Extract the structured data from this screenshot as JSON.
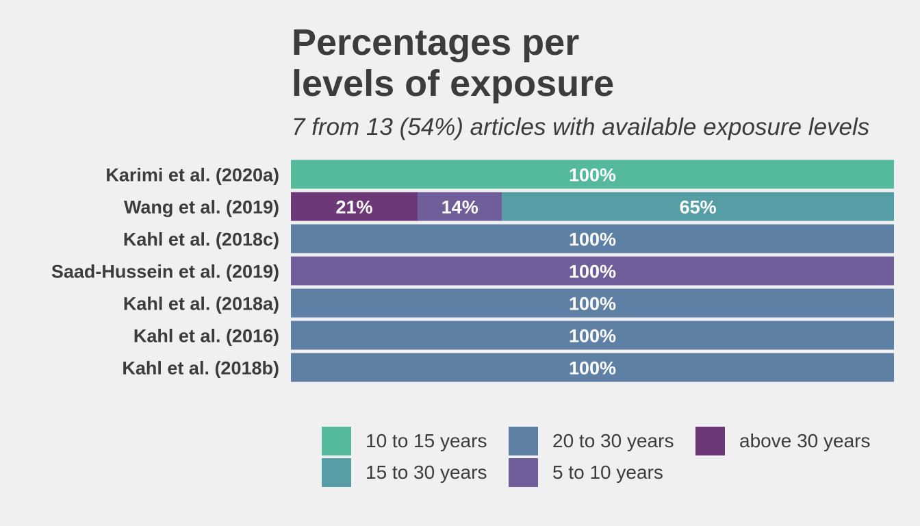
{
  "chart_data": {
    "type": "bar",
    "orientation": "horizontal",
    "stacked": true,
    "title": "Percentages per levels of exposure",
    "title_lines": [
      "Percentages per",
      "levels of exposure"
    ],
    "subtitle": "7 from 13 (54%) articles with available exposure levels",
    "xlabel": "",
    "ylabel": "",
    "xlim": [
      0,
      100
    ],
    "grid": false,
    "legend_position": "bottom",
    "categories": [
      "Karimi et al. (2020a)",
      "Wang et al. (2019)",
      "Kahl et al. (2018c)",
      "Saad-Hussein et al. (2019)",
      "Kahl et al. (2018a)",
      "Kahl et al. (2016)",
      "Kahl et al. (2018b)"
    ],
    "rows": [
      {
        "category": "Karimi et al. (2020a)",
        "segments": [
          {
            "level": "10 to 15 years",
            "value": 100,
            "label": "100%"
          }
        ]
      },
      {
        "category": "Wang et al. (2019)",
        "segments": [
          {
            "level": "above 30 years",
            "value": 21,
            "label": "21%"
          },
          {
            "level": "5 to 10 years",
            "value": 14,
            "label": "14%"
          },
          {
            "level": "15 to 30 years",
            "value": 65,
            "label": "65%"
          }
        ]
      },
      {
        "category": "Kahl et al. (2018c)",
        "segments": [
          {
            "level": "20 to 30 years",
            "value": 100,
            "label": "100%"
          }
        ]
      },
      {
        "category": "Saad-Hussein et al. (2019)",
        "segments": [
          {
            "level": "5 to 10 years",
            "value": 100,
            "label": "100%"
          }
        ]
      },
      {
        "category": "Kahl et al. (2018a)",
        "segments": [
          {
            "level": "20 to 30 years",
            "value": 100,
            "label": "100%"
          }
        ]
      },
      {
        "category": "Kahl et al. (2016)",
        "segments": [
          {
            "level": "20 to 30 years",
            "value": 100,
            "label": "100%"
          }
        ]
      },
      {
        "category": "Kahl et al. (2018b)",
        "segments": [
          {
            "level": "20 to 30 years",
            "value": 100,
            "label": "100%"
          }
        ]
      }
    ],
    "legend": [
      {
        "name": "10 to 15 years",
        "color": "#55b99e"
      },
      {
        "name": "15 to 30 years",
        "color": "#559ea6"
      },
      {
        "name": "20 to 30 years",
        "color": "#5f80a5"
      },
      {
        "name": "5 to 10 years",
        "color": "#705e9b"
      },
      {
        "name": "above 30 years",
        "color": "#6c3878"
      }
    ]
  }
}
